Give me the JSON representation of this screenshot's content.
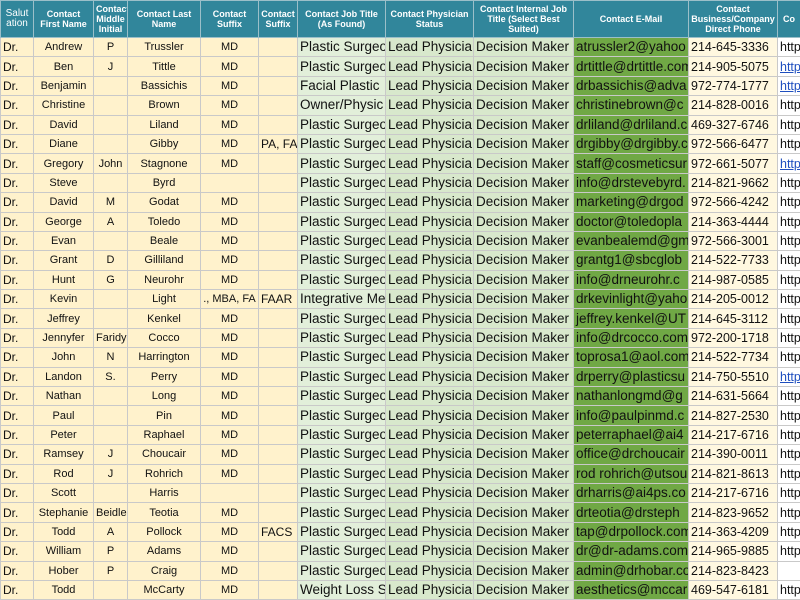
{
  "table": {
    "headers": [
      "Salutation",
      "Contact First Name",
      "Contact Middle Initial",
      "Contact Last Name",
      "Contact Suffix",
      "Contact Suffix",
      "Contact Job Title (As Found)",
      "Contact Physician Status",
      "Contact Internal Job Title (Select Best Suited)",
      "Contact E-Mail",
      "Contact Business/Company Direct Phone",
      "Co"
    ],
    "rows": [
      [
        "Dr.",
        "Andrew",
        "P",
        "Trussler",
        "MD",
        null,
        "Plastic Surgeo",
        "Lead Physicia",
        "Decision Maker",
        "atrussler2@yahoo",
        "214-645-3336",
        "http"
      ],
      [
        "Dr.",
        "Ben",
        "J",
        "Tittle",
        "MD",
        null,
        "Plastic Surgeo",
        "Lead Physicia",
        "Decision Maker",
        "drtittle@drtittle.com",
        "214-905-5075",
        "http"
      ],
      [
        "Dr.",
        "Benjamin",
        null,
        "Bassichis",
        "MD",
        null,
        "Facial Plastic",
        "Lead Physicia",
        "Decision Maker",
        "drbassichis@adva",
        "972-774-1777",
        "http"
      ],
      [
        "Dr.",
        "Christine",
        null,
        "Brown",
        "MD",
        null,
        "Owner/Physic",
        "Lead Physicia",
        "Decision Maker",
        "christinebrown@c",
        "214-828-0016",
        "http"
      ],
      [
        "Dr.",
        "David",
        null,
        "Liland",
        "MD",
        null,
        "Plastic Surgeo",
        "Lead Physicia",
        "Decision Maker",
        "drliland@drliland.c",
        "469-327-6746",
        "http"
      ],
      [
        "Dr.",
        "Diane",
        null,
        "Gibby",
        "MD",
        "PA, FA",
        "Plastic Surgeo",
        "Lead Physicia",
        "Decision Maker",
        "drgibby@drgibby.c",
        "972-566-6477",
        "http"
      ],
      [
        "Dr.",
        "Gregory",
        "John",
        "Stagnone",
        "MD",
        null,
        "Plastic Surgeo",
        "Lead Physicia",
        "Decision Maker",
        "staff@cosmeticsur",
        "972-661-5077",
        "http"
      ],
      [
        "Dr.",
        "Steve",
        null,
        "Byrd",
        null,
        null,
        "Plastic Surgeo",
        "Lead Physicia",
        "Decision Maker",
        "info@drstevebyrd.",
        "214-821-9662",
        "http"
      ],
      [
        "Dr.",
        "David",
        "M",
        "Godat",
        "MD",
        null,
        "Plastic Surgeo",
        "Lead Physicia",
        "Decision Maker",
        "marketing@drgod",
        "972-566-4242",
        "http"
      ],
      [
        "Dr.",
        "George",
        "A",
        "Toledo",
        "MD",
        null,
        "Plastic Surgeo",
        "Lead Physicia",
        "Decision Maker",
        "doctor@toledopla",
        "214-363-4444",
        "http"
      ],
      [
        "Dr.",
        "Evan",
        null,
        "Beale",
        "MD",
        null,
        "Plastic Surgeo",
        "Lead Physicia",
        "Decision Maker",
        "evanbealemd@gm",
        "972-566-3001",
        "http"
      ],
      [
        "Dr.",
        "Grant",
        "D",
        "Gilliland",
        "MD",
        null,
        "Plastic Surgeo",
        "Lead Physicia",
        "Decision Maker",
        "grantg1@sbcglob",
        "214-522-7733",
        "http"
      ],
      [
        "Dr.",
        "Hunt",
        "G",
        "Neurohr",
        "MD",
        null,
        "Plastic Surgeo",
        "Lead Physicia",
        "Decision Maker",
        "info@drneurohr.c",
        "214-987-0585",
        "http"
      ],
      [
        "Dr.",
        "Kevin",
        null,
        "Light",
        "., MBA, FA",
        "FAAR",
        "Integrative Me",
        "Lead Physicia",
        "Decision Maker",
        "drkevinlight@yaho",
        "214-205-0012",
        "http"
      ],
      [
        "Dr.",
        "Jeffrey",
        null,
        "Kenkel",
        "MD",
        null,
        "Plastic Surgeo",
        "Lead Physicia",
        "Decision Maker",
        "jeffrey.kenkel@UT",
        "214-645-3112",
        "http"
      ],
      [
        "Dr.",
        "Jennyfer",
        "Faridy",
        "Cocco",
        "MD",
        null,
        "Plastic Surgeo",
        "Lead Physicia",
        "Decision Maker",
        "info@drcocco.com",
        "972-200-1718",
        "http"
      ],
      [
        "Dr.",
        "John",
        "N",
        "Harrington",
        "MD",
        null,
        "Plastic Surgeo",
        "Lead Physicia",
        "Decision Maker",
        "toprosa1@aol.com",
        "214-522-7734",
        "http"
      ],
      [
        "Dr.",
        "Landon",
        "S.",
        "Perry",
        "MD",
        null,
        "Plastic Surgeo",
        "Lead Physicia",
        "Decision Maker",
        "drperry@plasticsu",
        "214-750-5510",
        "http"
      ],
      [
        "Dr.",
        "Nathan",
        null,
        "Long",
        "MD",
        null,
        "Plastic Surgeo",
        "Lead Physicia",
        "Decision Maker",
        "nathanlongmd@g",
        "214-631-5664",
        "http"
      ],
      [
        "Dr.",
        "Paul",
        null,
        "Pin",
        "MD",
        null,
        "Plastic Surgeo",
        "Lead Physicia",
        "Decision Maker",
        "info@paulpinmd.c",
        "214-827-2530",
        "http"
      ],
      [
        "Dr.",
        "Peter",
        null,
        "Raphael",
        "MD",
        null,
        "Plastic Surgeo",
        "Lead Physicia",
        "Decision Maker",
        "peterraphael@ai4",
        "214-217-6716",
        "http"
      ],
      [
        "Dr.",
        "Ramsey",
        "J",
        "Choucair",
        "MD",
        null,
        "Plastic Surgeo",
        "Lead Physicia",
        "Decision Maker",
        "office@drchoucair",
        "214-390-0011",
        "http"
      ],
      [
        "Dr.",
        "Rod",
        "J",
        "Rohrich",
        "MD",
        null,
        "Plastic Surgeo",
        "Lead Physicia",
        "Decision Maker",
        "rod rohrich@utsou",
        "214-821-8613",
        "http"
      ],
      [
        "Dr.",
        "Scott",
        null,
        "Harris",
        null,
        null,
        "Plastic Surgeo",
        "Lead Physicia",
        "Decision Maker",
        "drharris@ai4ps.co",
        "214-217-6716",
        "http"
      ],
      [
        "Dr.",
        "Stephanie",
        "Beidler",
        "Teotia",
        "MD",
        null,
        "Plastic Surgeo",
        "Lead Physicia",
        "Decision Maker",
        "drteotia@drsteph",
        "214-823-9652",
        "http"
      ],
      [
        "Dr.",
        "Todd",
        "A",
        "Pollock",
        "MD",
        "FACS",
        "Plastic Surgeo",
        "Lead Physicia",
        "Decision Maker",
        "tap@drpollock.com",
        "214-363-4209",
        "http"
      ],
      [
        "Dr.",
        "William",
        "P",
        "Adams",
        "MD",
        null,
        "Plastic Surgeo",
        "Lead Physicia",
        "Decision Maker",
        "dr@dr-adams.com",
        "214-965-9885",
        "http"
      ],
      [
        "Dr.",
        "Hober",
        "P",
        "Craig",
        "MD",
        null,
        "Plastic Surgeo",
        "Lead Physicia",
        "Decision Maker",
        "admin@drhobar.co",
        "214-823-8423",
        null
      ],
      [
        "Dr.",
        "Todd",
        null,
        "McCarty",
        "MD",
        null,
        "Weight Loss S",
        "Lead Physicia",
        "Decision Maker",
        "aesthetics@mccar",
        "469-547-6181",
        "http"
      ]
    ]
  }
}
